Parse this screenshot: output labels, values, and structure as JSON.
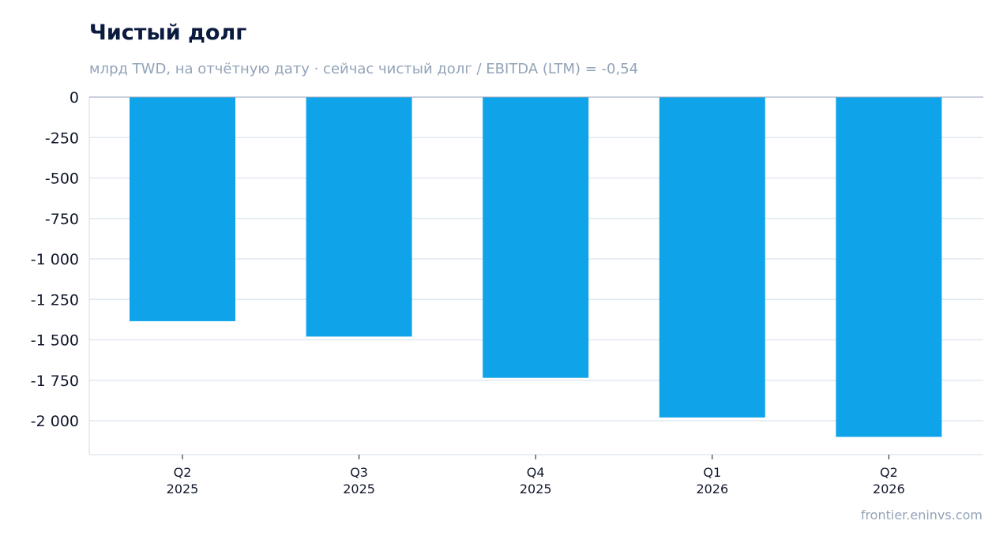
{
  "chart_data": {
    "type": "bar",
    "title": "Чистый долг",
    "subtitle": "млрд TWD, на отчётную дату · сейчас чистый долг / EBITDA (LTM) = -0,54",
    "categories": [
      [
        "Q2",
        "2025"
      ],
      [
        "Q3",
        "2025"
      ],
      [
        "Q4",
        "2025"
      ],
      [
        "Q1",
        "2026"
      ],
      [
        "Q2",
        "2026"
      ]
    ],
    "values": [
      -1385,
      -1480,
      -1735,
      -1980,
      -2100
    ],
    "yticks": [
      0,
      -250,
      -500,
      -750,
      -1000,
      -1250,
      -1500,
      -1750,
      -2000
    ],
    "ytick_labels": [
      "0",
      "-250",
      "-500",
      "-750",
      "-1 000",
      "-1 250",
      "-1 500",
      "-1 750",
      "-2 000"
    ],
    "ylim": [
      -2210,
      0
    ],
    "grid": true,
    "legend": "none",
    "bar_color": "#0fa4e9",
    "grid_color": "#e2e8f0",
    "source": "frontier.eninvs.com"
  }
}
